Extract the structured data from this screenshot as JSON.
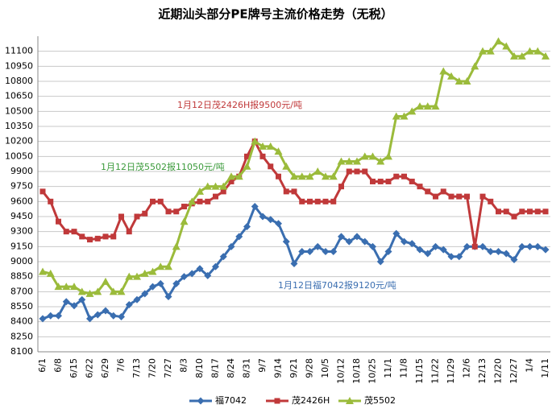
{
  "chart_data": {
    "type": "line",
    "title": "近期汕头部分PE牌号主流价格走势（无税）",
    "categories": [
      "6/1",
      null,
      "6/8",
      null,
      "6/15",
      null,
      "6/22",
      null,
      "6/29",
      null,
      "7/6",
      null,
      "7/13",
      null,
      "7/20",
      null,
      "7/27",
      null,
      "8/3",
      null,
      "8/10",
      null,
      "8/17",
      null,
      "8/24",
      null,
      "8/31",
      null,
      "9/7",
      null,
      "9/14",
      null,
      "9/21",
      null,
      "9/28",
      null,
      "10/5",
      null,
      "10/12",
      null,
      "10/18",
      null,
      "10/25",
      null,
      "11/1",
      null,
      "11/8",
      null,
      "11/15",
      null,
      "11/22",
      null,
      "11/29",
      null,
      "12/6",
      null,
      "12/13",
      null,
      "12/20",
      null,
      "12/27",
      null,
      "1/4",
      null,
      "1/11"
    ],
    "series": [
      {
        "name": "福7042",
        "color": "#3a6eb0",
        "marker": "diamond",
        "values": [
          8430,
          8460,
          8460,
          8600,
          8560,
          8620,
          8430,
          8470,
          8510,
          8460,
          8450,
          8570,
          8620,
          8680,
          8750,
          8780,
          8650,
          8780,
          8850,
          8880,
          8930,
          8860,
          8950,
          9050,
          9150,
          9250,
          9350,
          9550,
          9450,
          9420,
          9380,
          9200,
          8980,
          9100,
          9100,
          9150,
          9100,
          9100,
          9250,
          9200,
          9250,
          9200,
          9150,
          9000,
          9100,
          9280,
          9200,
          9180,
          9120,
          9080,
          9150,
          9120,
          9050,
          9050,
          9150,
          9150,
          9150,
          9100,
          9100,
          9080,
          9020,
          9150,
          9150,
          9150,
          9120
        ]
      },
      {
        "name": "茂2426H",
        "color": "#c0393a",
        "marker": "square",
        "values": [
          9700,
          9600,
          9400,
          9300,
          9300,
          9250,
          9220,
          9230,
          9250,
          9250,
          9450,
          9300,
          9450,
          9480,
          9600,
          9600,
          9500,
          9500,
          9550,
          9580,
          9600,
          9600,
          9650,
          9700,
          9800,
          9850,
          10050,
          10200,
          10050,
          9950,
          9850,
          9700,
          9700,
          9600,
          9600,
          9600,
          9600,
          9600,
          9750,
          9900,
          9900,
          9900,
          9800,
          9800,
          9800,
          9850,
          9850,
          9800,
          9750,
          9700,
          9650,
          9700,
          9650,
          9650,
          9650,
          9150,
          9650,
          9600,
          9500,
          9500,
          9450,
          9500,
          9500,
          9500,
          9500
        ]
      },
      {
        "name": "茂5502",
        "color": "#9bbb3b",
        "marker": "triangle",
        "values": [
          8900,
          8880,
          8750,
          8750,
          8750,
          8700,
          8680,
          8700,
          8800,
          8700,
          8700,
          8850,
          8850,
          8880,
          8900,
          8950,
          8950,
          9150,
          9400,
          9600,
          9700,
          9750,
          9750,
          9750,
          9850,
          9850,
          9950,
          10200,
          10150,
          10150,
          10100,
          9950,
          9850,
          9850,
          9850,
          9900,
          9850,
          9850,
          10000,
          10000,
          10000,
          10050,
          10050,
          10000,
          10050,
          10450,
          10450,
          10500,
          10550,
          10550,
          10550,
          10900,
          10850,
          10800,
          10800,
          10950,
          11100,
          11100,
          11200,
          11150,
          11050,
          11050,
          11100,
          11100,
          11050
        ]
      }
    ],
    "annotations": [
      {
        "text": "1月12日茂2426H报9500元/吨",
        "color": "#c0393a"
      },
      {
        "text": "1月12日茂5502报11050元/吨",
        "color": "#3a9a3a"
      },
      {
        "text": "1月12日福7042报9120元/吨",
        "color": "#3a6eb0"
      }
    ],
    "ylim": [
      8100,
      11250
    ],
    "yticks": [
      8100,
      8250,
      8400,
      8550,
      8700,
      8850,
      9000,
      9150,
      9300,
      9450,
      9600,
      9750,
      9900,
      10050,
      10200,
      10350,
      10500,
      10650,
      10800,
      10950,
      11100
    ],
    "grid": true,
    "legend": "bottom"
  }
}
